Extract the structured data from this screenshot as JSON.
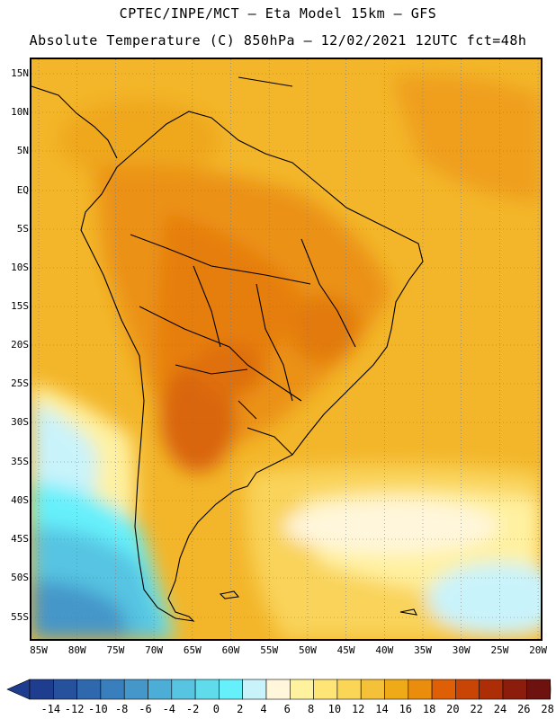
{
  "header": {
    "line1": "CPTEC/INPE/MCT –  Eta Model 15km – GFS",
    "line2": "Absolute Temperature (C) 850hPa – 12/02/2021 12UTC fct=48h"
  },
  "map": {
    "lat_labels": [
      "15N",
      "10N",
      "5N",
      "EQ",
      "5S",
      "10S",
      "15S",
      "20S",
      "25S",
      "30S",
      "35S",
      "40S",
      "45S",
      "50S",
      "55S"
    ],
    "lon_labels": [
      "85W",
      "80W",
      "75W",
      "70W",
      "65W",
      "60W",
      "55W",
      "50W",
      "45W",
      "40W",
      "35W",
      "30W",
      "25W",
      "20W"
    ]
  },
  "colorbar": {
    "labels": [
      "-14",
      "-12",
      "-10",
      "-8",
      "-6",
      "-4",
      "-2",
      "0",
      "2",
      "4",
      "6",
      "8",
      "10",
      "12",
      "14",
      "16",
      "18",
      "20",
      "22",
      "24",
      "26",
      "28"
    ],
    "colors": [
      "#1f3d8f",
      "#25519d",
      "#2f68ad",
      "#3a7fbd",
      "#4596c9",
      "#4cadd6",
      "#57c4e2",
      "#5fdbec",
      "#66f0fb",
      "#c9f3fb",
      "#fff6dc",
      "#fff29e",
      "#ffe575",
      "#fbd555",
      "#f5c138",
      "#efab17",
      "#ea8c0c",
      "#de5f06",
      "#c94506",
      "#ad2e06",
      "#8c1c0c",
      "#6e120f"
    ]
  }
}
